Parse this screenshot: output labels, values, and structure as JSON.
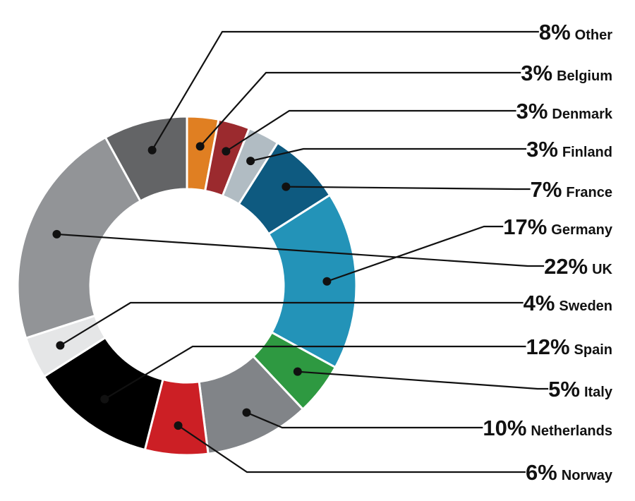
{
  "chart_data": {
    "type": "pie",
    "variant": "donut",
    "title": "",
    "legend": "none",
    "start_category": "Belgium",
    "direction": "clockwise",
    "categories": [
      "Belgium",
      "Denmark",
      "Finland",
      "France",
      "Germany",
      "Italy",
      "Netherlands",
      "Norway",
      "Spain",
      "Sweden",
      "UK",
      "Other"
    ],
    "values": [
      3,
      3,
      3,
      7,
      17,
      5,
      10,
      6,
      12,
      4,
      22,
      8
    ],
    "colors": [
      "#e07f22",
      "#9b2a2e",
      "#b1bcc3",
      "#0e5a80",
      "#2393b8",
      "#2e9941",
      "#818488",
      "#cc1f25",
      "#000000",
      "#e5e6e7",
      "#929497",
      "#636466"
    ],
    "labels": [
      {
        "percent": "8%",
        "name": "Other"
      },
      {
        "percent": "3%",
        "name": "Belgium"
      },
      {
        "percent": "3%",
        "name": "Denmark"
      },
      {
        "percent": "3%",
        "name": "Finland"
      },
      {
        "percent": "7%",
        "name": "France"
      },
      {
        "percent": "17%",
        "name": "Germany"
      },
      {
        "percent": "22%",
        "name": "UK"
      },
      {
        "percent": "4%",
        "name": "Sweden"
      },
      {
        "percent": "12%",
        "name": "Spain"
      },
      {
        "percent": "5%",
        "name": "Italy"
      },
      {
        "percent": "10%",
        "name": "Netherlands"
      },
      {
        "percent": "6%",
        "name": "Norway"
      }
    ]
  }
}
